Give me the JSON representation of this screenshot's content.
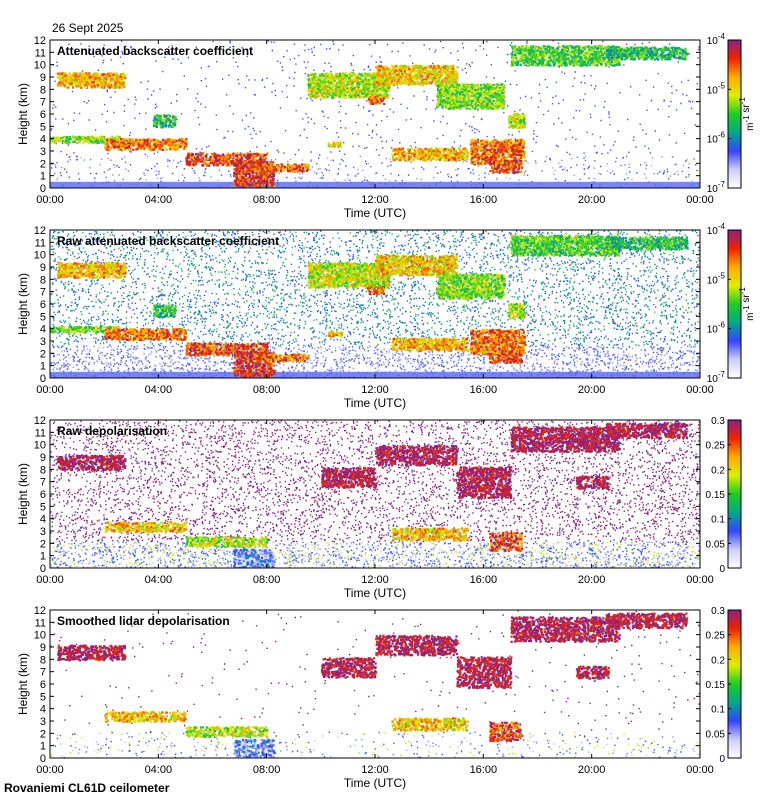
{
  "header": {
    "date": "26 Sept 2025"
  },
  "footer": {
    "instrument": "Rovaniemi CL61D ceilometer"
  },
  "colors": {
    "colormap": [
      "#ffffff",
      "#ccccff",
      "#3344ff",
      "#00aa88",
      "#22cc22",
      "#ddee00",
      "#ffaa00",
      "#ee2200",
      "#882288"
    ],
    "dark_magenta": "#882288"
  },
  "chart_data": [
    {
      "type": "heatmap",
      "title": "Attenuated backscatter coefficient",
      "xlabel": "Time (UTC)",
      "ylabel": "Height (km)",
      "x_ticks": [
        "00:00",
        "04:00",
        "08:00",
        "12:00",
        "16:00",
        "20:00",
        "00:00"
      ],
      "y_ticks": [
        "0",
        "1",
        "2",
        "3",
        "4",
        "5",
        "6",
        "7",
        "8",
        "9",
        "10",
        "11",
        "12"
      ],
      "ylim": [
        0,
        12
      ],
      "colorbar": {
        "scale": "log",
        "range": [
          1e-07,
          0.0001
        ],
        "tick_labels": [
          "10^-7",
          "10^-6",
          "10^-5",
          "10^-4"
        ],
        "unit": "m^-1 sr^-1"
      }
    },
    {
      "type": "heatmap",
      "title": "Raw attenuated backscatter coefficient",
      "xlabel": "Time (UTC)",
      "ylabel": "Height (km)",
      "x_ticks": [
        "00:00",
        "04:00",
        "08:00",
        "12:00",
        "16:00",
        "20:00",
        "00:00"
      ],
      "y_ticks": [
        "0",
        "1",
        "2",
        "3",
        "4",
        "5",
        "6",
        "7",
        "8",
        "9",
        "10",
        "11",
        "12"
      ],
      "ylim": [
        0,
        12
      ],
      "colorbar": {
        "scale": "log",
        "range": [
          1e-07,
          0.0001
        ],
        "tick_labels": [
          "10^-7",
          "10^-6",
          "10^-5",
          "10^-4"
        ],
        "unit": "m^-1 sr^-1"
      }
    },
    {
      "type": "heatmap",
      "title": "Raw depolarisation",
      "xlabel": "Time (UTC)",
      "ylabel": "Height (km)",
      "x_ticks": [
        "00:00",
        "04:00",
        "08:00",
        "12:00",
        "16:00",
        "20:00",
        "00:00"
      ],
      "y_ticks": [
        "0",
        "1",
        "2",
        "3",
        "4",
        "5",
        "6",
        "7",
        "8",
        "9",
        "10",
        "11",
        "12"
      ],
      "ylim": [
        0,
        12
      ],
      "colorbar": {
        "scale": "linear",
        "range": [
          0,
          0.3
        ],
        "tick_labels": [
          "0",
          "0.05",
          "0.1",
          "0.15",
          "0.2",
          "0.25",
          "0.3"
        ],
        "unit": ""
      }
    },
    {
      "type": "heatmap",
      "title": "Smoothed lidar depolarisation",
      "xlabel": "Time (UTC)",
      "ylabel": "Height (km)",
      "x_ticks": [
        "00:00",
        "04:00",
        "08:00",
        "12:00",
        "16:00",
        "20:00",
        "00:00"
      ],
      "y_ticks": [
        "0",
        "1",
        "2",
        "3",
        "4",
        "5",
        "6",
        "7",
        "8",
        "9",
        "10",
        "11",
        "12"
      ],
      "ylim": [
        0,
        12
      ],
      "colorbar": {
        "scale": "linear",
        "range": [
          0,
          0.3
        ],
        "tick_labels": [
          "0",
          "0.05",
          "0.1",
          "0.15",
          "0.2",
          "0.25",
          "0.3"
        ],
        "unit": ""
      }
    }
  ]
}
